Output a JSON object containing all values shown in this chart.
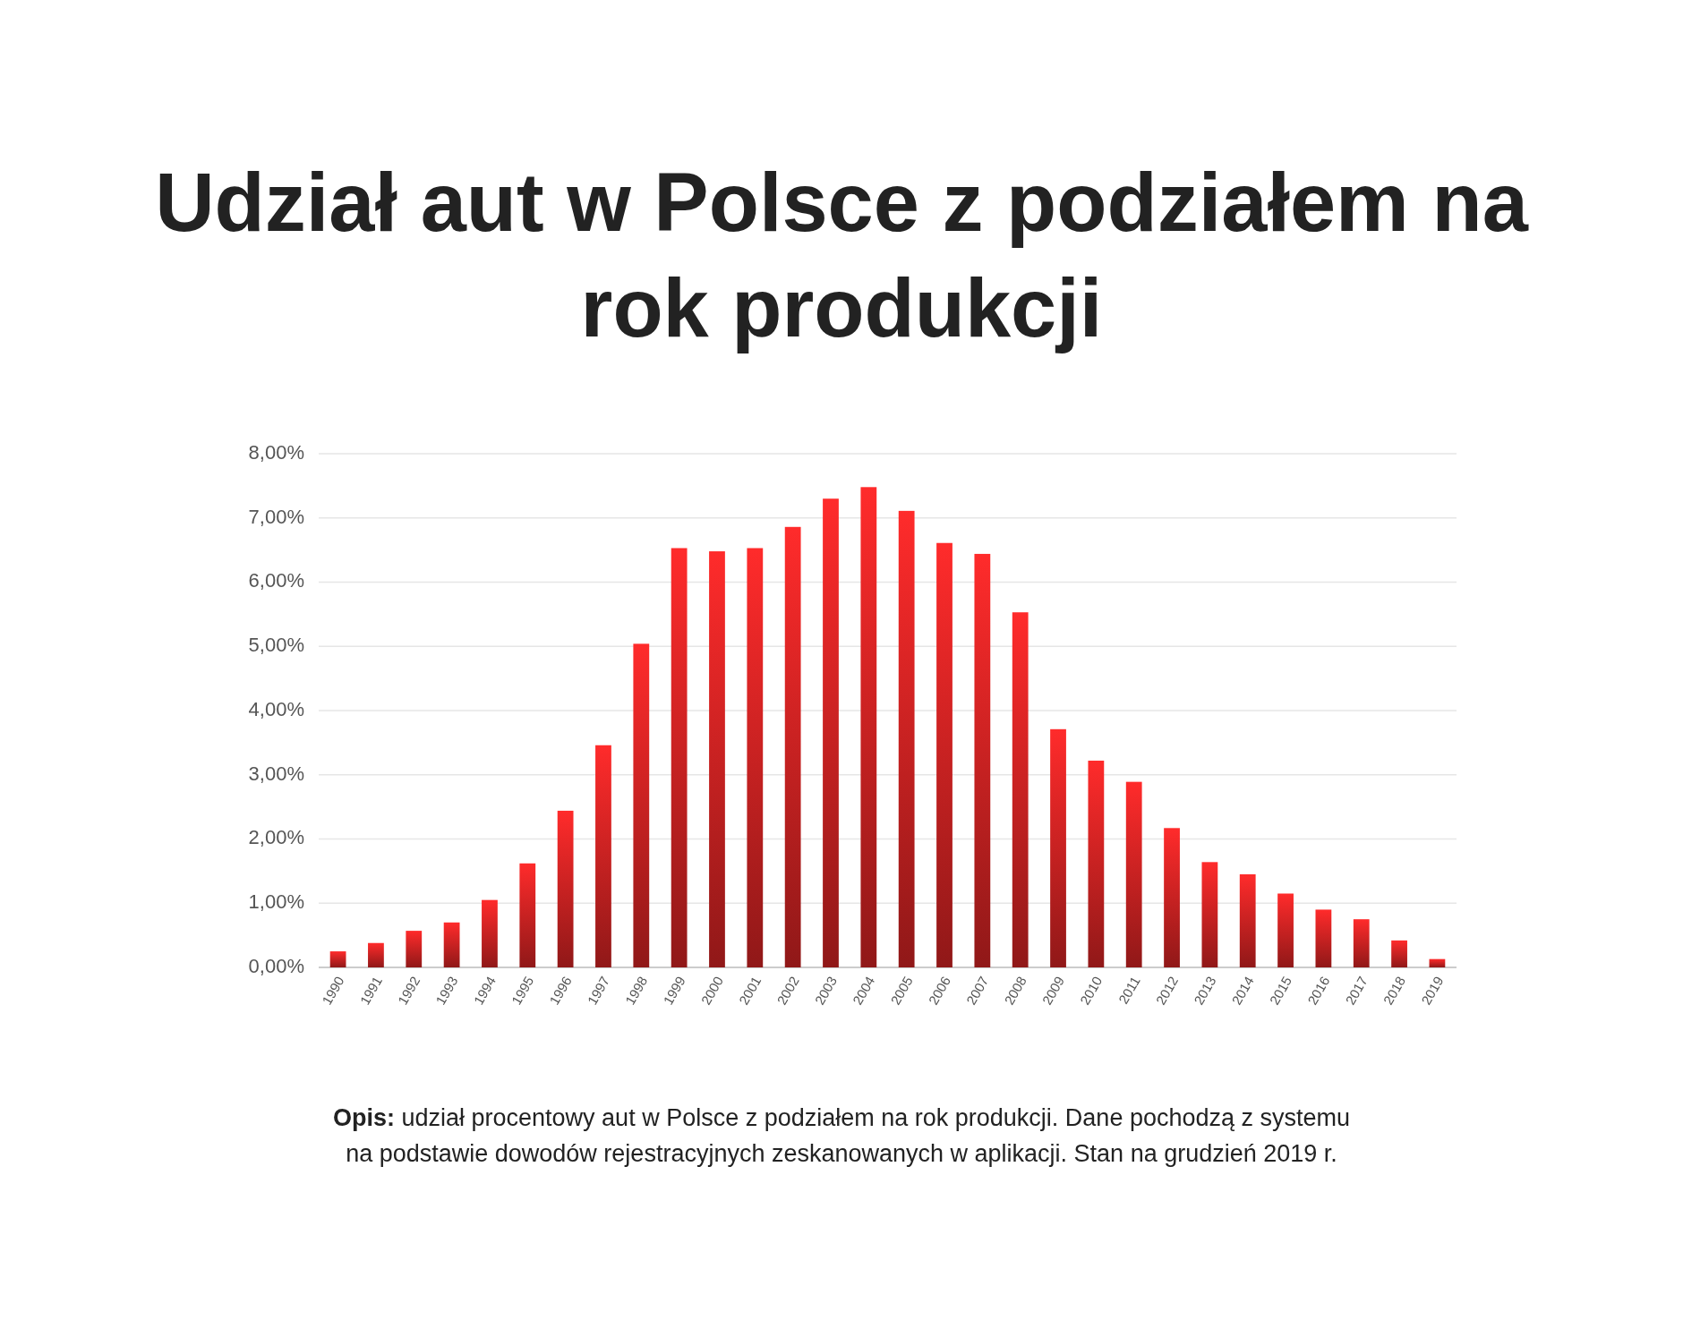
{
  "chart_data": {
    "type": "bar",
    "title": "Udział aut w Polsce z podziałem na rok produkcji",
    "categories": [
      "1990",
      "1991",
      "1992",
      "1993",
      "1994",
      "1995",
      "1996",
      "1997",
      "1998",
      "1999",
      "2000",
      "2001",
      "2002",
      "2003",
      "2004",
      "2005",
      "2006",
      "2007",
      "2008",
      "2009",
      "2010",
      "2011",
      "2012",
      "2013",
      "2014",
      "2015",
      "2016",
      "2017",
      "2018",
      "2019"
    ],
    "values": [
      0.25,
      0.38,
      0.57,
      0.7,
      1.05,
      1.62,
      2.44,
      3.46,
      5.04,
      6.53,
      6.48,
      6.53,
      6.86,
      7.3,
      7.48,
      7.11,
      6.61,
      6.44,
      5.53,
      3.71,
      3.22,
      2.89,
      2.17,
      1.64,
      1.45,
      1.15,
      0.9,
      0.75,
      0.42,
      0.13
    ],
    "color": "#ff2b2b",
    "ylim": [
      0,
      8
    ],
    "yticks": [
      {
        "value": 0,
        "label": "0,00%"
      },
      {
        "value": 1,
        "label": "1,00%"
      },
      {
        "value": 2,
        "label": "2,00%"
      },
      {
        "value": 3,
        "label": "3,00%"
      },
      {
        "value": 4,
        "label": "4,00%"
      },
      {
        "value": 5,
        "label": "5,00%"
      },
      {
        "value": 6,
        "label": "6,00%"
      },
      {
        "value": 7,
        "label": "7,00%"
      },
      {
        "value": 8,
        "label": "8,00%"
      }
    ],
    "grid": "y",
    "annotations": [
      "Opis: udział procentowy aut w Polsce z podziałem na rok produkcji. Dane pochodzą z systemu na podstawie dowodów rejestracyjnych zeskanowanych w aplikacji. Stan na grudzień 2019 r."
    ]
  }
}
